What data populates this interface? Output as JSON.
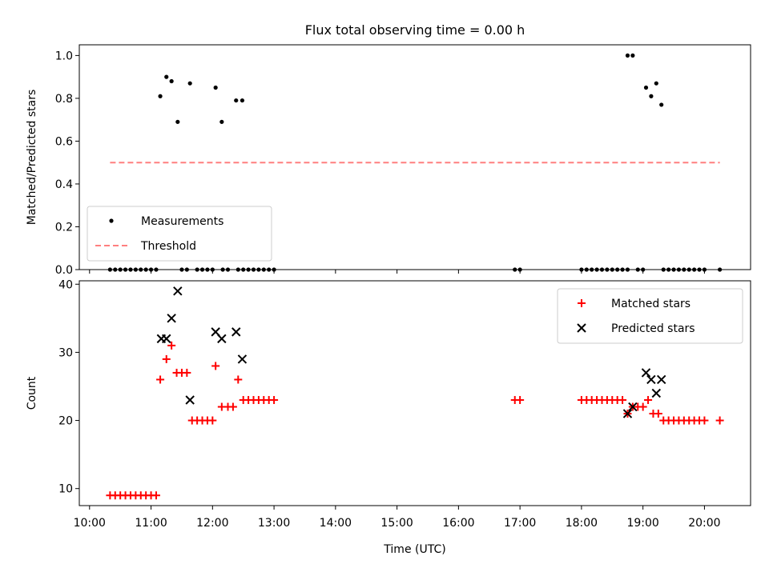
{
  "title": "Flux total observing time = 0.00 h",
  "colors": {
    "measurement": "#000000",
    "threshold": "#ff7f7f",
    "matched": "#ff0000",
    "predicted": "#000000"
  },
  "chart_data": [
    {
      "type": "scatter",
      "panel": "top",
      "xlabel": "",
      "ylabel": "Matched/Predicted stars",
      "xlim": [
        "09:50",
        "20:45"
      ],
      "ylim": [
        0,
        1.05
      ],
      "yticks": [
        0.0,
        0.2,
        0.4,
        0.6,
        0.8,
        1.0
      ],
      "ytick_labels": [
        "0.0",
        "0.2",
        "0.4",
        "0.6",
        "0.8",
        "1.0"
      ],
      "legend_position": "lower-left",
      "legend": [
        {
          "label": "Measurements",
          "marker": "dot"
        },
        {
          "label": "Threshold",
          "marker": "dashed-line"
        }
      ],
      "series": [
        {
          "name": "Measurements",
          "marker": "dot",
          "points": [
            [
              "10:20",
              0
            ],
            [
              "10:25",
              0
            ],
            [
              "10:30",
              0
            ],
            [
              "10:35",
              0
            ],
            [
              "10:40",
              0
            ],
            [
              "10:45",
              0
            ],
            [
              "10:50",
              0
            ],
            [
              "10:55",
              0
            ],
            [
              "11:00",
              0
            ],
            [
              "11:05",
              0
            ],
            [
              "11:09",
              0.81
            ],
            [
              "11:15",
              0.9
            ],
            [
              "11:20",
              0.88
            ],
            [
              "11:26",
              0.69
            ],
            [
              "11:38",
              0.87
            ],
            [
              "11:30",
              0
            ],
            [
              "11:35",
              0
            ],
            [
              "11:45",
              0
            ],
            [
              "11:50",
              0
            ],
            [
              "11:55",
              0
            ],
            [
              "12:00",
              0
            ],
            [
              "12:03",
              0.85
            ],
            [
              "12:09",
              0.69
            ],
            [
              "12:23",
              0.79
            ],
            [
              "12:29",
              0.79
            ],
            [
              "12:10",
              0
            ],
            [
              "12:15",
              0
            ],
            [
              "12:25",
              0
            ],
            [
              "12:30",
              0
            ],
            [
              "12:35",
              0
            ],
            [
              "12:40",
              0
            ],
            [
              "12:45",
              0
            ],
            [
              "12:50",
              0
            ],
            [
              "12:55",
              0
            ],
            [
              "13:00",
              0
            ],
            [
              "16:55",
              0
            ],
            [
              "17:00",
              0
            ],
            [
              "18:00",
              0
            ],
            [
              "18:05",
              0
            ],
            [
              "18:10",
              0
            ],
            [
              "18:15",
              0
            ],
            [
              "18:20",
              0
            ],
            [
              "18:25",
              0
            ],
            [
              "18:30",
              0
            ],
            [
              "18:35",
              0
            ],
            [
              "18:40",
              0
            ],
            [
              "18:45",
              0
            ],
            [
              "18:45",
              1.0
            ],
            [
              "18:50",
              1.0
            ],
            [
              "18:55",
              0
            ],
            [
              "19:00",
              0
            ],
            [
              "19:03",
              0.85
            ],
            [
              "19:08",
              0.81
            ],
            [
              "19:13",
              0.87
            ],
            [
              "19:18",
              0.77
            ],
            [
              "19:20",
              0
            ],
            [
              "19:25",
              0
            ],
            [
              "19:30",
              0
            ],
            [
              "19:35",
              0
            ],
            [
              "19:40",
              0
            ],
            [
              "19:45",
              0
            ],
            [
              "19:50",
              0
            ],
            [
              "19:55",
              0
            ],
            [
              "20:00",
              0
            ],
            [
              "20:15",
              0
            ]
          ]
        },
        {
          "name": "Threshold",
          "marker": "dashed-line",
          "points": [
            [
              "10:20",
              0.5
            ],
            [
              "20:15",
              0.5
            ]
          ]
        }
      ]
    },
    {
      "type": "scatter",
      "panel": "bottom",
      "xlabel": "Time (UTC)",
      "ylabel": "Count",
      "xlim": [
        "09:50",
        "20:45"
      ],
      "ylim": [
        7.5,
        40.5
      ],
      "yticks": [
        10,
        20,
        30,
        40
      ],
      "ytick_labels": [
        "10",
        "20",
        "30",
        "40"
      ],
      "xticks": [
        "10:00",
        "11:00",
        "12:00",
        "13:00",
        "14:00",
        "15:00",
        "16:00",
        "17:00",
        "18:00",
        "19:00",
        "20:00"
      ],
      "legend_position": "top-right",
      "legend": [
        {
          "label": "Matched stars",
          "marker": "plus"
        },
        {
          "label": "Predicted stars",
          "marker": "x"
        }
      ],
      "series": [
        {
          "name": "Matched stars",
          "marker": "plus",
          "points": [
            [
              "10:20",
              9
            ],
            [
              "10:25",
              9
            ],
            [
              "10:30",
              9
            ],
            [
              "10:35",
              9
            ],
            [
              "10:40",
              9
            ],
            [
              "10:45",
              9
            ],
            [
              "10:50",
              9
            ],
            [
              "10:55",
              9
            ],
            [
              "11:00",
              9
            ],
            [
              "11:05",
              9
            ],
            [
              "11:09",
              26
            ],
            [
              "11:15",
              29
            ],
            [
              "11:20",
              31
            ],
            [
              "11:25",
              27
            ],
            [
              "11:30",
              27
            ],
            [
              "11:35",
              27
            ],
            [
              "11:40",
              20
            ],
            [
              "11:45",
              20
            ],
            [
              "11:50",
              20
            ],
            [
              "11:55",
              20
            ],
            [
              "12:00",
              20
            ],
            [
              "12:03",
              28
            ],
            [
              "12:09",
              22
            ],
            [
              "12:15",
              22
            ],
            [
              "12:20",
              22
            ],
            [
              "12:25",
              26
            ],
            [
              "12:30",
              23
            ],
            [
              "12:35",
              23
            ],
            [
              "12:40",
              23
            ],
            [
              "12:45",
              23
            ],
            [
              "12:50",
              23
            ],
            [
              "12:55",
              23
            ],
            [
              "13:00",
              23
            ],
            [
              "16:55",
              23
            ],
            [
              "17:00",
              23
            ],
            [
              "18:00",
              23
            ],
            [
              "18:05",
              23
            ],
            [
              "18:10",
              23
            ],
            [
              "18:15",
              23
            ],
            [
              "18:20",
              23
            ],
            [
              "18:25",
              23
            ],
            [
              "18:30",
              23
            ],
            [
              "18:35",
              23
            ],
            [
              "18:40",
              23
            ],
            [
              "18:45",
              21
            ],
            [
              "18:50",
              22
            ],
            [
              "18:55",
              22
            ],
            [
              "19:00",
              22
            ],
            [
              "19:05",
              23
            ],
            [
              "19:10",
              21
            ],
            [
              "19:15",
              21
            ],
            [
              "19:20",
              20
            ],
            [
              "19:25",
              20
            ],
            [
              "19:30",
              20
            ],
            [
              "19:35",
              20
            ],
            [
              "19:40",
              20
            ],
            [
              "19:45",
              20
            ],
            [
              "19:50",
              20
            ],
            [
              "19:55",
              20
            ],
            [
              "20:00",
              20
            ],
            [
              "20:15",
              20
            ]
          ]
        },
        {
          "name": "Predicted stars",
          "marker": "x",
          "points": [
            [
              "11:10",
              32
            ],
            [
              "11:15",
              32
            ],
            [
              "11:20",
              35
            ],
            [
              "11:26",
              39
            ],
            [
              "11:38",
              23
            ],
            [
              "12:03",
              33
            ],
            [
              "12:09",
              32
            ],
            [
              "12:23",
              33
            ],
            [
              "12:29",
              29
            ],
            [
              "18:45",
              21
            ],
            [
              "18:50",
              22
            ],
            [
              "19:03",
              27
            ],
            [
              "19:08",
              26
            ],
            [
              "19:13",
              24
            ],
            [
              "19:18",
              26
            ]
          ]
        }
      ]
    }
  ]
}
